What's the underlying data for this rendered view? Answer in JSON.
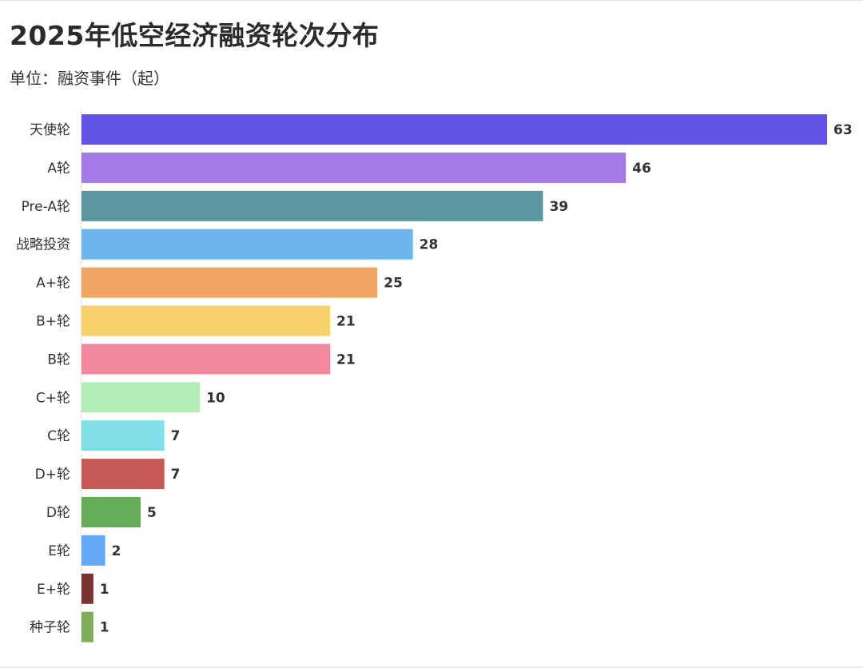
{
  "title": "2025年低空经济融资轮次分布",
  "subtitle": "单位：融资事件（起）",
  "chart_data": {
    "type": "bar",
    "orientation": "horizontal",
    "title": "2025年低空经济融资轮次分布",
    "subtitle": "单位：融资事件（起）",
    "xlabel": "",
    "ylabel": "",
    "xlim": [
      0,
      63
    ],
    "grid": false,
    "legend": "none",
    "categories": [
      "天使轮",
      "A轮",
      "Pre-A轮",
      "战略投资",
      "A+轮",
      "B+轮",
      "B轮",
      "C+轮",
      "C轮",
      "D+轮",
      "D轮",
      "E轮",
      "E+轮",
      "种子轮"
    ],
    "values": [
      63,
      46,
      39,
      28,
      25,
      21,
      21,
      10,
      7,
      7,
      5,
      2,
      1,
      1
    ],
    "colors": [
      "#6352e6",
      "#a47ae6",
      "#5b96a1",
      "#6db5ec",
      "#f2a663",
      "#f6d06a",
      "#f2899c",
      "#b3edb5",
      "#80dfe8",
      "#c65a57",
      "#65ad57",
      "#64a8f5",
      "#7a3330",
      "#7fab5b"
    ]
  }
}
